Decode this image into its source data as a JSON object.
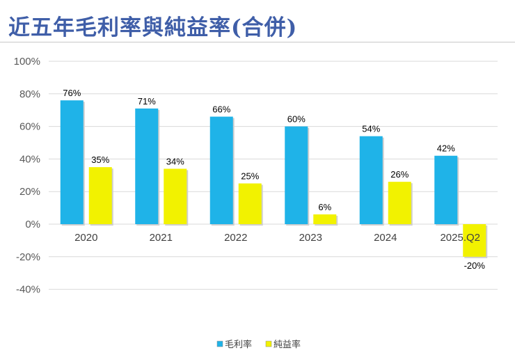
{
  "chart_data": {
    "type": "bar",
    "title": "近五年毛利率與純益率(合併)",
    "categories": [
      "2020",
      "2021",
      "2022",
      "2023",
      "2024",
      "2025.Q2"
    ],
    "series": [
      {
        "name": "毛利率",
        "color": "#1fb3e8",
        "values": [
          76,
          71,
          66,
          60,
          54,
          42
        ],
        "labels": [
          "76%",
          "71%",
          "66%",
          "60%",
          "54%",
          "42%"
        ]
      },
      {
        "name": "純益率",
        "color": "#f2f200",
        "values": [
          35,
          34,
          25,
          6,
          26,
          -20
        ],
        "labels": [
          "35%",
          "34%",
          "25%",
          "6%",
          "26%",
          "-20%"
        ]
      }
    ],
    "ylim": [
      -40,
      100
    ],
    "yticks": [
      "-40%",
      "-20%",
      "0%",
      "20%",
      "40%",
      "60%",
      "80%",
      "100%"
    ],
    "ytick_values": [
      -40,
      -20,
      0,
      20,
      40,
      60,
      80,
      100
    ],
    "grid": true,
    "legend": "bottom"
  }
}
